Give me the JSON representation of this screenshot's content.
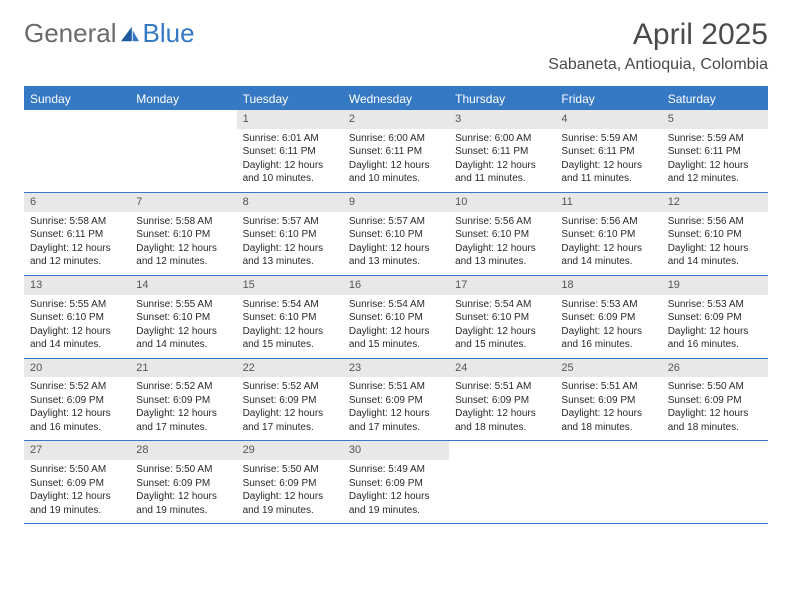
{
  "brand": {
    "part1": "General",
    "part2": "Blue"
  },
  "title": "April 2025",
  "location": "Sabaneta, Antioquia, Colombia",
  "colors": {
    "accent": "#3578c4",
    "dayBarBg": "#e8e8e8",
    "text": "#2a2a2a"
  },
  "dow": [
    "Sunday",
    "Monday",
    "Tuesday",
    "Wednesday",
    "Thursday",
    "Friday",
    "Saturday"
  ],
  "weeks": [
    [
      null,
      null,
      {
        "n": "1",
        "sr": "Sunrise: 6:01 AM",
        "ss": "Sunset: 6:11 PM",
        "dl": "Daylight: 12 hours and 10 minutes."
      },
      {
        "n": "2",
        "sr": "Sunrise: 6:00 AM",
        "ss": "Sunset: 6:11 PM",
        "dl": "Daylight: 12 hours and 10 minutes."
      },
      {
        "n": "3",
        "sr": "Sunrise: 6:00 AM",
        "ss": "Sunset: 6:11 PM",
        "dl": "Daylight: 12 hours and 11 minutes."
      },
      {
        "n": "4",
        "sr": "Sunrise: 5:59 AM",
        "ss": "Sunset: 6:11 PM",
        "dl": "Daylight: 12 hours and 11 minutes."
      },
      {
        "n": "5",
        "sr": "Sunrise: 5:59 AM",
        "ss": "Sunset: 6:11 PM",
        "dl": "Daylight: 12 hours and 12 minutes."
      }
    ],
    [
      {
        "n": "6",
        "sr": "Sunrise: 5:58 AM",
        "ss": "Sunset: 6:11 PM",
        "dl": "Daylight: 12 hours and 12 minutes."
      },
      {
        "n": "7",
        "sr": "Sunrise: 5:58 AM",
        "ss": "Sunset: 6:10 PM",
        "dl": "Daylight: 12 hours and 12 minutes."
      },
      {
        "n": "8",
        "sr": "Sunrise: 5:57 AM",
        "ss": "Sunset: 6:10 PM",
        "dl": "Daylight: 12 hours and 13 minutes."
      },
      {
        "n": "9",
        "sr": "Sunrise: 5:57 AM",
        "ss": "Sunset: 6:10 PM",
        "dl": "Daylight: 12 hours and 13 minutes."
      },
      {
        "n": "10",
        "sr": "Sunrise: 5:56 AM",
        "ss": "Sunset: 6:10 PM",
        "dl": "Daylight: 12 hours and 13 minutes."
      },
      {
        "n": "11",
        "sr": "Sunrise: 5:56 AM",
        "ss": "Sunset: 6:10 PM",
        "dl": "Daylight: 12 hours and 14 minutes."
      },
      {
        "n": "12",
        "sr": "Sunrise: 5:56 AM",
        "ss": "Sunset: 6:10 PM",
        "dl": "Daylight: 12 hours and 14 minutes."
      }
    ],
    [
      {
        "n": "13",
        "sr": "Sunrise: 5:55 AM",
        "ss": "Sunset: 6:10 PM",
        "dl": "Daylight: 12 hours and 14 minutes."
      },
      {
        "n": "14",
        "sr": "Sunrise: 5:55 AM",
        "ss": "Sunset: 6:10 PM",
        "dl": "Daylight: 12 hours and 14 minutes."
      },
      {
        "n": "15",
        "sr": "Sunrise: 5:54 AM",
        "ss": "Sunset: 6:10 PM",
        "dl": "Daylight: 12 hours and 15 minutes."
      },
      {
        "n": "16",
        "sr": "Sunrise: 5:54 AM",
        "ss": "Sunset: 6:10 PM",
        "dl": "Daylight: 12 hours and 15 minutes."
      },
      {
        "n": "17",
        "sr": "Sunrise: 5:54 AM",
        "ss": "Sunset: 6:10 PM",
        "dl": "Daylight: 12 hours and 15 minutes."
      },
      {
        "n": "18",
        "sr": "Sunrise: 5:53 AM",
        "ss": "Sunset: 6:09 PM",
        "dl": "Daylight: 12 hours and 16 minutes."
      },
      {
        "n": "19",
        "sr": "Sunrise: 5:53 AM",
        "ss": "Sunset: 6:09 PM",
        "dl": "Daylight: 12 hours and 16 minutes."
      }
    ],
    [
      {
        "n": "20",
        "sr": "Sunrise: 5:52 AM",
        "ss": "Sunset: 6:09 PM",
        "dl": "Daylight: 12 hours and 16 minutes."
      },
      {
        "n": "21",
        "sr": "Sunrise: 5:52 AM",
        "ss": "Sunset: 6:09 PM",
        "dl": "Daylight: 12 hours and 17 minutes."
      },
      {
        "n": "22",
        "sr": "Sunrise: 5:52 AM",
        "ss": "Sunset: 6:09 PM",
        "dl": "Daylight: 12 hours and 17 minutes."
      },
      {
        "n": "23",
        "sr": "Sunrise: 5:51 AM",
        "ss": "Sunset: 6:09 PM",
        "dl": "Daylight: 12 hours and 17 minutes."
      },
      {
        "n": "24",
        "sr": "Sunrise: 5:51 AM",
        "ss": "Sunset: 6:09 PM",
        "dl": "Daylight: 12 hours and 18 minutes."
      },
      {
        "n": "25",
        "sr": "Sunrise: 5:51 AM",
        "ss": "Sunset: 6:09 PM",
        "dl": "Daylight: 12 hours and 18 minutes."
      },
      {
        "n": "26",
        "sr": "Sunrise: 5:50 AM",
        "ss": "Sunset: 6:09 PM",
        "dl": "Daylight: 12 hours and 18 minutes."
      }
    ],
    [
      {
        "n": "27",
        "sr": "Sunrise: 5:50 AM",
        "ss": "Sunset: 6:09 PM",
        "dl": "Daylight: 12 hours and 19 minutes."
      },
      {
        "n": "28",
        "sr": "Sunrise: 5:50 AM",
        "ss": "Sunset: 6:09 PM",
        "dl": "Daylight: 12 hours and 19 minutes."
      },
      {
        "n": "29",
        "sr": "Sunrise: 5:50 AM",
        "ss": "Sunset: 6:09 PM",
        "dl": "Daylight: 12 hours and 19 minutes."
      },
      {
        "n": "30",
        "sr": "Sunrise: 5:49 AM",
        "ss": "Sunset: 6:09 PM",
        "dl": "Daylight: 12 hours and 19 minutes."
      },
      null,
      null,
      null
    ]
  ]
}
